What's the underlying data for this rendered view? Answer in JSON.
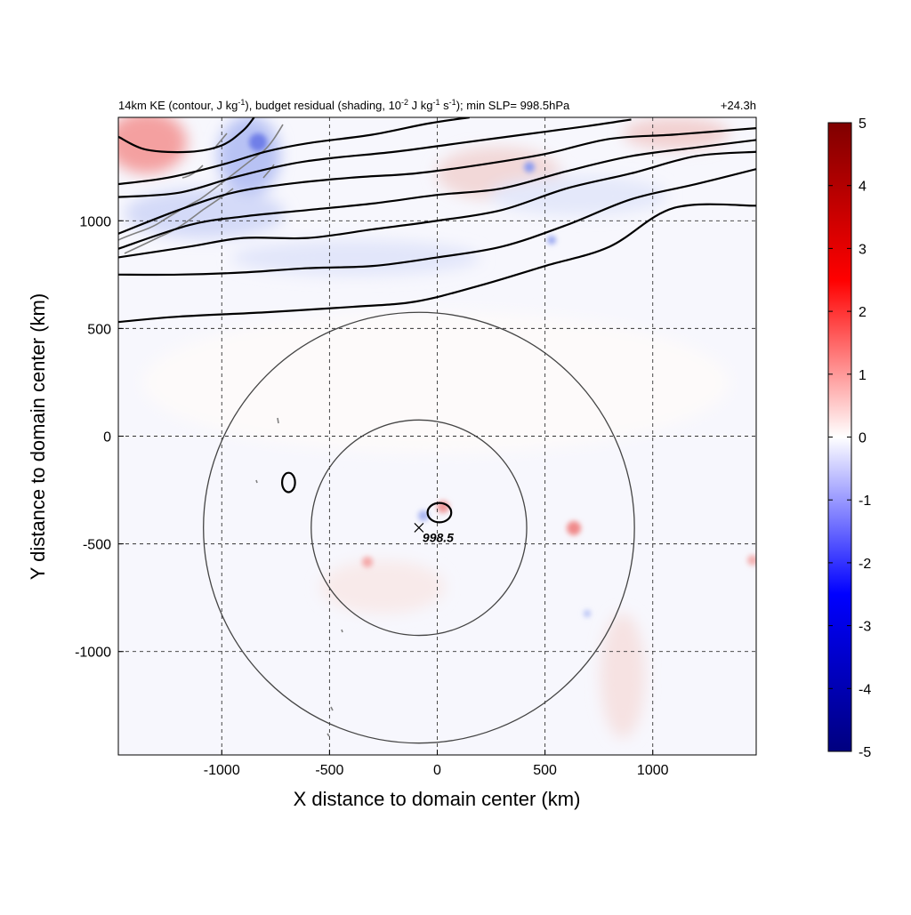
{
  "figure": {
    "title_parts": {
      "a": "14km KE (contour, J kg",
      "a_sup": "-1",
      "b": "), budget residual (shading, 10",
      "b_sup": "-2",
      "c": " J kg",
      "c_sup": "-1",
      "d": " s",
      "d_sup": "-1",
      "e": "); min SLP= 998.5hPa"
    },
    "time_label": "+24.3h",
    "min_slp_label": "998.5"
  },
  "chart_data": {
    "type": "heatmap",
    "title": "14km KE (contour, J kg-1), budget residual (shading, 10-2 J kg-1 s-1); min SLP= 998.5hPa",
    "xlabel": "X distance to domain center (km)",
    "ylabel": "Y distance to domain center (km)",
    "xlim": [
      -1480,
      1480
    ],
    "ylim": [
      -1480,
      1480
    ],
    "xticks": [
      -1000,
      -500,
      0,
      500,
      1000
    ],
    "yticks": [
      1000,
      500,
      0,
      -500,
      -1000
    ],
    "grid": true,
    "colorbar": {
      "min": -5,
      "max": 5,
      "ticks": [
        5,
        4,
        3,
        2,
        1,
        0,
        -1,
        -2,
        -3,
        -4,
        -5
      ],
      "colors": [
        "#00007f",
        "#0000ff",
        "#ffffff",
        "#ff0000",
        "#7f0000"
      ]
    },
    "storm_center": {
      "x": -85,
      "y": -425,
      "min_slp_hPa": 998.5
    },
    "range_rings_km": [
      500,
      1000
    ],
    "ke_contours": [
      [
        [
          -1480,
          530
        ],
        [
          -1200,
          555
        ],
        [
          -800,
          575
        ],
        [
          -400,
          600
        ],
        [
          -100,
          625
        ],
        [
          200,
          700
        ],
        [
          500,
          790
        ],
        [
          800,
          880
        ],
        [
          1100,
          1060
        ],
        [
          1480,
          1070
        ]
      ],
      [
        [
          -1480,
          750
        ],
        [
          -1200,
          750
        ],
        [
          -900,
          760
        ],
        [
          -600,
          780
        ],
        [
          -300,
          790
        ],
        [
          0,
          830
        ],
        [
          300,
          880
        ],
        [
          600,
          980
        ],
        [
          900,
          1100
        ],
        [
          1200,
          1170
        ],
        [
          1480,
          1240
        ]
      ],
      [
        [
          -1480,
          830
        ],
        [
          -1150,
          880
        ],
        [
          -900,
          920
        ],
        [
          -600,
          920
        ],
        [
          -300,
          960
        ],
        [
          0,
          1000
        ],
        [
          300,
          1050
        ],
        [
          600,
          1150
        ],
        [
          900,
          1220
        ],
        [
          1200,
          1300
        ],
        [
          1480,
          1320
        ]
      ],
      [
        [
          -1480,
          870
        ],
        [
          -1150,
          980
        ],
        [
          -900,
          1020
        ],
        [
          -600,
          1050
        ],
        [
          -300,
          1080
        ],
        [
          0,
          1120
        ],
        [
          300,
          1150
        ],
        [
          600,
          1230
        ],
        [
          900,
          1300
        ],
        [
          1200,
          1340
        ],
        [
          1480,
          1375
        ]
      ],
      [
        [
          -1480,
          940
        ],
        [
          -1200,
          1050
        ],
        [
          -950,
          1130
        ],
        [
          -700,
          1170
        ],
        [
          -400,
          1200
        ],
        [
          -100,
          1220
        ],
        [
          200,
          1260
        ],
        [
          500,
          1310
        ],
        [
          800,
          1380
        ],
        [
          1100,
          1400
        ],
        [
          1480,
          1430
        ]
      ],
      [
        [
          -1480,
          1110
        ],
        [
          -1200,
          1130
        ],
        [
          -950,
          1200
        ],
        [
          -700,
          1260
        ],
        [
          -500,
          1290
        ],
        [
          -200,
          1320
        ],
        [
          100,
          1360
        ],
        [
          400,
          1400
        ],
        [
          700,
          1440
        ],
        [
          900,
          1470
        ]
      ],
      [
        [
          -1480,
          1170
        ],
        [
          -1250,
          1200
        ],
        [
          -1000,
          1260
        ],
        [
          -800,
          1320
        ],
        [
          -600,
          1360
        ],
        [
          -300,
          1400
        ],
        [
          -50,
          1450
        ],
        [
          150,
          1480
        ]
      ],
      [
        [
          -1480,
          1390
        ],
        [
          -1350,
          1330
        ],
        [
          -1150,
          1320
        ],
        [
          -1000,
          1350
        ],
        [
          -900,
          1420
        ],
        [
          -850,
          1480
        ]
      ]
    ],
    "ke_small_contours": [
      {
        "cx": -690,
        "cy": -215,
        "rx": 30,
        "ry": 45
      },
      {
        "cx": 10,
        "cy": -355,
        "rx": 55,
        "ry": 45
      }
    ]
  }
}
